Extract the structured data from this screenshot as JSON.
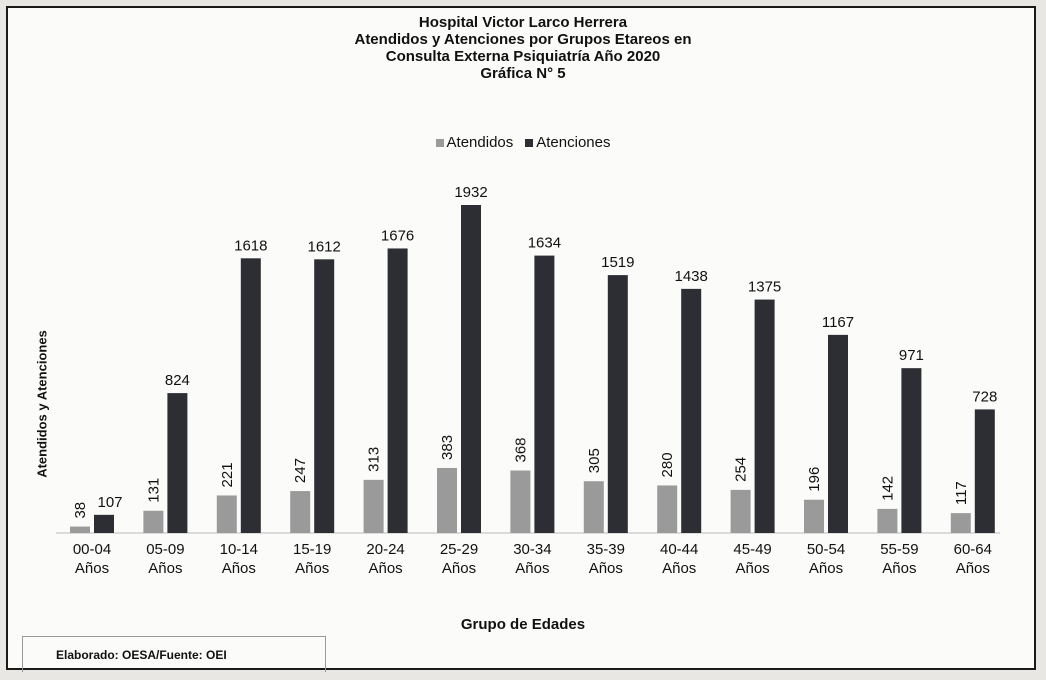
{
  "chart_data": {
    "type": "bar",
    "title_lines": [
      "Hospital Victor Larco Herrera",
      "Atendidos y Atenciones por Grupos Etareos en",
      "Consulta Externa Psiquiatría Año 2020",
      "Gráfica N° 5"
    ],
    "xlabel": "Grupo de Edades",
    "ylabel": "Atendidos y Atenciones",
    "legend_position": "top-center",
    "grid": false,
    "ylim": [
      0,
      1932
    ],
    "categories": [
      [
        "00-04",
        "Años"
      ],
      [
        "05-09",
        "Años"
      ],
      [
        "10-14",
        "Años"
      ],
      [
        "15-19",
        "Años"
      ],
      [
        "20-24",
        "Años"
      ],
      [
        "25-29",
        "Años"
      ],
      [
        "30-34",
        "Años"
      ],
      [
        "35-39",
        "Años"
      ],
      [
        "40-44",
        "Años"
      ],
      [
        "45-49",
        "Años"
      ],
      [
        "50-54",
        "Años"
      ],
      [
        "55-59",
        "Años"
      ],
      [
        "60-64",
        "Años"
      ]
    ],
    "series": [
      {
        "name": "Atendidos",
        "color": "#9a9a9a",
        "values": [
          38,
          131,
          221,
          247,
          313,
          383,
          368,
          305,
          280,
          254,
          196,
          142,
          117
        ]
      },
      {
        "name": "Atenciones",
        "color": "#2c2e33",
        "values": [
          107,
          824,
          1618,
          1612,
          1676,
          1932,
          1634,
          1519,
          1438,
          1375,
          1167,
          971,
          728
        ]
      }
    ]
  },
  "footer": "Elaborado: OESA/Fuente: OEI"
}
